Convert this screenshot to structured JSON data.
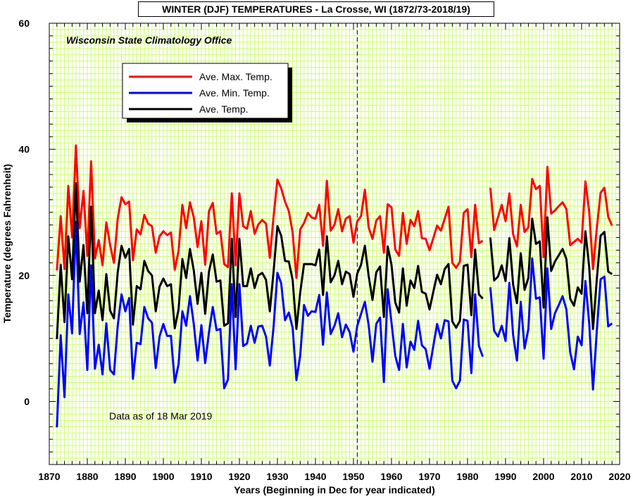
{
  "chart_data": {
    "type": "line",
    "title": "WINTER (DJF) TEMPERATURES - La Crosse, WI (1872/73-2018/19)",
    "subtitle": "Wisconsin State Climatology Office",
    "annotation": "Data as of 18 Mar 2019",
    "xlabel": "Years (Beginning in Dec for year indicated)",
    "ylabel": "Temperature (degrees Fahrenheit)",
    "xlim": [
      1870,
      2020
    ],
    "ylim": [
      -10,
      60
    ],
    "x_ticks": [
      1870,
      1880,
      1890,
      1900,
      1910,
      1920,
      1930,
      1940,
      1950,
      1960,
      1970,
      1980,
      1990,
      2000,
      2010,
      2020
    ],
    "y_ticks": [
      0,
      20,
      40,
      60
    ],
    "grid": true,
    "grid_color": "#ccff66",
    "reference_line_x": 1951,
    "legend_placement": "upper-left",
    "series": [
      {
        "name": "Ave. Max. Temp.",
        "color": "#ff0000",
        "segments": [
          {
            "x_start": 1872,
            "values": [
              20.8,
              29.4,
              21.0,
              34.2,
              26.0,
              40.6,
              27.5,
              33.4,
              23.1,
              38.1,
              22.7,
              25.6,
              21.6,
              28.4,
              24.8,
              22.0,
              29.0,
              32.4,
              31.3,
              31.7,
              22.4,
              27.3,
              26.5,
              29.6,
              28.2,
              27.8,
              23.6,
              26.2,
              27.0,
              26.4,
              26.8,
              20.9,
              23.9,
              31.2,
              27.5,
              31.6,
              29.2,
              24.5,
              28.6,
              21.7,
              30.2,
              31.5,
              26.6,
              27.0,
              21.8,
              21.3,
              33.0,
              21.6,
              33.0,
              27.8,
              27.4,
              30.2,
              26.6,
              28.1,
              28.8,
              28.2,
              22.8,
              29.4,
              35.2,
              33.8,
              31.7,
              30.2,
              26.8,
              19.6,
              27.3,
              28.3,
              29.9,
              29.2,
              29.0,
              31.2,
              24.7,
              35.0,
              27.1,
              28.0,
              30.5,
              27.0,
              29.0,
              29.4,
              25.2,
              28.6,
              29.4,
              33.6,
              27.6,
              25.8,
              28.7,
              29.4,
              23.6,
              31.3,
              30.8,
              24.1,
              23.1,
              29.9,
              25.0,
              28.8,
              27.8,
              30.2,
              25.9,
              25.8,
              24.0,
              25.9,
              27.9,
              27.1,
              29.0,
              30.9,
              22.0,
              21.2,
              22.2,
              29.9,
              30.5,
              22.9,
              31.2,
              25.1,
              25.5
            ]
          },
          {
            "x_start": 1986,
            "values": [
              33.9,
              27.2,
              29.2,
              31.2,
              28.6,
              33.0,
              26.5,
              24.6,
              31.2,
              26.9,
              27.6,
              35.3,
              33.7,
              34.2,
              22.9,
              37.2,
              29.8,
              30.3,
              31.0,
              31.6,
              30.5,
              24.8,
              25.3,
              25.8,
              25.2,
              34.9,
              30.1,
              21.0,
              27.5,
              33.1,
              33.9,
              29.3,
              27.9
            ]
          }
        ]
      },
      {
        "name": "Ave. Min. Temp.",
        "color": "#0000ff",
        "segments": [
          {
            "x_start": 1872,
            "values": [
              -4.1,
              10.5,
              0.7,
              17.0,
              10.8,
              28.5,
              10.7,
              15.7,
              5.0,
              21.6,
              5.2,
              9.0,
              4.3,
              12.4,
              5.0,
              4.3,
              12.0,
              17.0,
              14.3,
              16.4,
              3.6,
              9.3,
              9.1,
              15.0,
              13.2,
              12.5,
              5.3,
              10.3,
              12.3,
              10.4,
              10.4,
              3.0,
              5.9,
              14.3,
              12.0,
              16.7,
              12.3,
              6.5,
              12.1,
              6.1,
              11.0,
              15.0,
              11.3,
              11.5,
              2.1,
              3.5,
              18.6,
              5.1,
              18.6,
              8.8,
              9.2,
              12.0,
              9.3,
              11.9,
              12.0,
              10.3,
              5.7,
              11.9,
              20.4,
              18.7,
              12.9,
              14.1,
              11.7,
              3.4,
              7.3,
              15.3,
              13.6,
              14.3,
              14.2,
              16.9,
              9.0,
              17.3,
              10.7,
              12.0,
              14.0,
              10.2,
              12.2,
              11.0,
              7.9,
              12.0,
              13.9,
              15.8,
              12.1,
              6.3,
              12.3,
              13.3,
              3.1,
              17.8,
              12.5,
              7.2,
              5.0,
              12.3,
              5.4,
              9.5,
              8.2,
              12.8,
              8.9,
              8.3,
              5.2,
              8.8,
              12.3,
              10.0,
              12.9,
              12.7,
              3.3,
              2.1,
              3.3,
              13.0,
              12.8,
              4.5,
              17.0,
              8.8,
              7.1
            ]
          },
          {
            "x_start": 1986,
            "values": [
              18.1,
              11.2,
              10.3,
              12.0,
              9.6,
              18.8,
              10.5,
              6.5,
              15.8,
              8.4,
              11.5,
              22.7,
              16.3,
              16.5,
              6.8,
              21.1,
              11.5,
              14.0,
              15.3,
              16.7,
              14.6,
              7.8,
              5.1,
              10.3,
              8.9,
              19.1,
              12.4,
              1.9,
              11.2,
              19.4,
              19.8,
              11.9,
              12.4
            ]
          }
        ]
      },
      {
        "name": "Ave. Temp.",
        "color": "#000000",
        "segments": [
          {
            "x_start": 1872,
            "values": [
              9.9,
              21.7,
              12.6,
              26.2,
              19.4,
              34.6,
              19.0,
              24.8,
              14.0,
              30.9,
              14.0,
              17.6,
              12.9,
              20.2,
              14.4,
              13.2,
              20.5,
              24.7,
              22.8,
              24.2,
              12.2,
              18.3,
              17.8,
              22.3,
              20.7,
              20.0,
              14.3,
              18.2,
              19.5,
              18.3,
              18.6,
              11.6,
              14.6,
              22.6,
              19.6,
              24.2,
              20.8,
              15.5,
              20.4,
              13.9,
              20.6,
              23.3,
              19.0,
              19.2,
              12.0,
              12.4,
              25.8,
              13.4,
              25.8,
              18.3,
              18.3,
              21.1,
              18.0,
              20.0,
              20.4,
              19.3,
              14.3,
              20.7,
              27.8,
              26.3,
              22.3,
              22.2,
              19.3,
              11.5,
              17.3,
              21.8,
              21.8,
              21.8,
              21.6,
              24.1,
              16.9,
              26.2,
              18.9,
              20.0,
              22.3,
              18.6,
              20.6,
              20.2,
              16.6,
              20.3,
              21.7,
              24.7,
              19.9,
              16.1,
              20.5,
              21.4,
              13.4,
              24.6,
              21.7,
              15.7,
              14.1,
              21.1,
              15.2,
              19.2,
              18.0,
              21.5,
              17.4,
              17.1,
              14.6,
              17.4,
              20.1,
              18.6,
              21.0,
              21.8,
              12.7,
              11.7,
              12.8,
              21.5,
              21.7,
              13.7,
              24.1,
              17.0,
              16.3
            ]
          },
          {
            "x_start": 1986,
            "values": [
              26.0,
              19.2,
              19.8,
              21.6,
              19.1,
              25.9,
              18.5,
              15.6,
              23.5,
              17.7,
              19.6,
              29.0,
              25.0,
              25.4,
              14.9,
              29.2,
              20.7,
              22.2,
              23.2,
              24.2,
              22.6,
              16.3,
              15.2,
              18.1,
              17.1,
              27.0,
              21.3,
              11.5,
              19.4,
              26.3,
              26.9,
              20.6,
              20.2
            ]
          }
        ]
      }
    ]
  }
}
